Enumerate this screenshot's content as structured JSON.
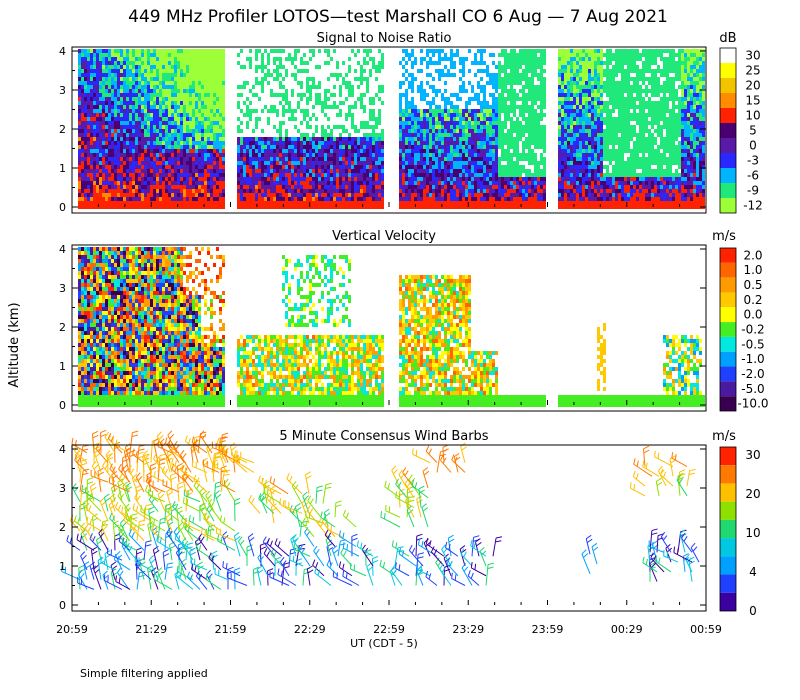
{
  "title": "449 MHz Profiler LOTOS—test Marshall CO  6 Aug —  7 Aug 2021",
  "footnote": "Simple filtering applied",
  "y_axis_label": "Altitude (km)",
  "x_axis_label": "UT  (CDT - 5)",
  "chart_data": [
    {
      "type": "heatmap",
      "title": "Signal to Noise Ratio",
      "unit": "dB",
      "y_ticks": [
        "0",
        "1",
        "2",
        "3",
        "4"
      ],
      "ylim": [
        0,
        4
      ],
      "colorbar_labels": [
        "30",
        "25",
        "20",
        "15",
        "10",
        "5",
        "0",
        "-3",
        "-6",
        "-9",
        "-12"
      ],
      "colorbar_colors": [
        "#ffffff",
        "#ffff00",
        "#f2c400",
        "#ff8c00",
        "#ff2200",
        "#4a0070",
        "#5a1aa8",
        "#2828ff",
        "#00b4ff",
        "#20e87a",
        "#9cff38"
      ],
      "data_gaps": [
        [
          "21:56",
          "22:05"
        ],
        [
          "22:56",
          "22:59"
        ],
        [
          "23:58",
          "00:05"
        ]
      ]
    },
    {
      "type": "heatmap",
      "title": "Vertical Velocity",
      "unit": "m/s",
      "y_ticks": [
        "0",
        "1",
        "2",
        "3",
        "4"
      ],
      "ylim": [
        0,
        4
      ],
      "colorbar_labels": [
        "2.0",
        "1.0",
        "0.5",
        "0.2",
        "0.0",
        "-0.2",
        "-0.5",
        "-1.0",
        "-2.0",
        "-5.0",
        "-10.0"
      ],
      "colorbar_colors": [
        "#ff2200",
        "#ff6600",
        "#ff9a00",
        "#ffc800",
        "#ffff00",
        "#44ee22",
        "#00e8e0",
        "#00a0ff",
        "#2040ff",
        "#4a1aa0",
        "#3a0050"
      ]
    },
    {
      "type": "scatter",
      "title": "5 Minute Consensus Wind Barbs",
      "unit": "m/s",
      "y_ticks": [
        "0",
        "1",
        "2",
        "3",
        "4"
      ],
      "ylim": [
        0,
        4
      ],
      "x_ticks": [
        "20:59",
        "21:29",
        "21:59",
        "22:29",
        "22:59",
        "23:29",
        "23:59",
        "00:29",
        "00:59"
      ],
      "colorbar_labels": [
        "30",
        "20",
        "10",
        "4",
        "0"
      ],
      "colorbar_colors": [
        "#ff2200",
        "#ff7a00",
        "#ffc000",
        "#8ee000",
        "#20d870",
        "#00c8e0",
        "#00a0ff",
        "#2040ff",
        "#3a00a0"
      ]
    }
  ]
}
